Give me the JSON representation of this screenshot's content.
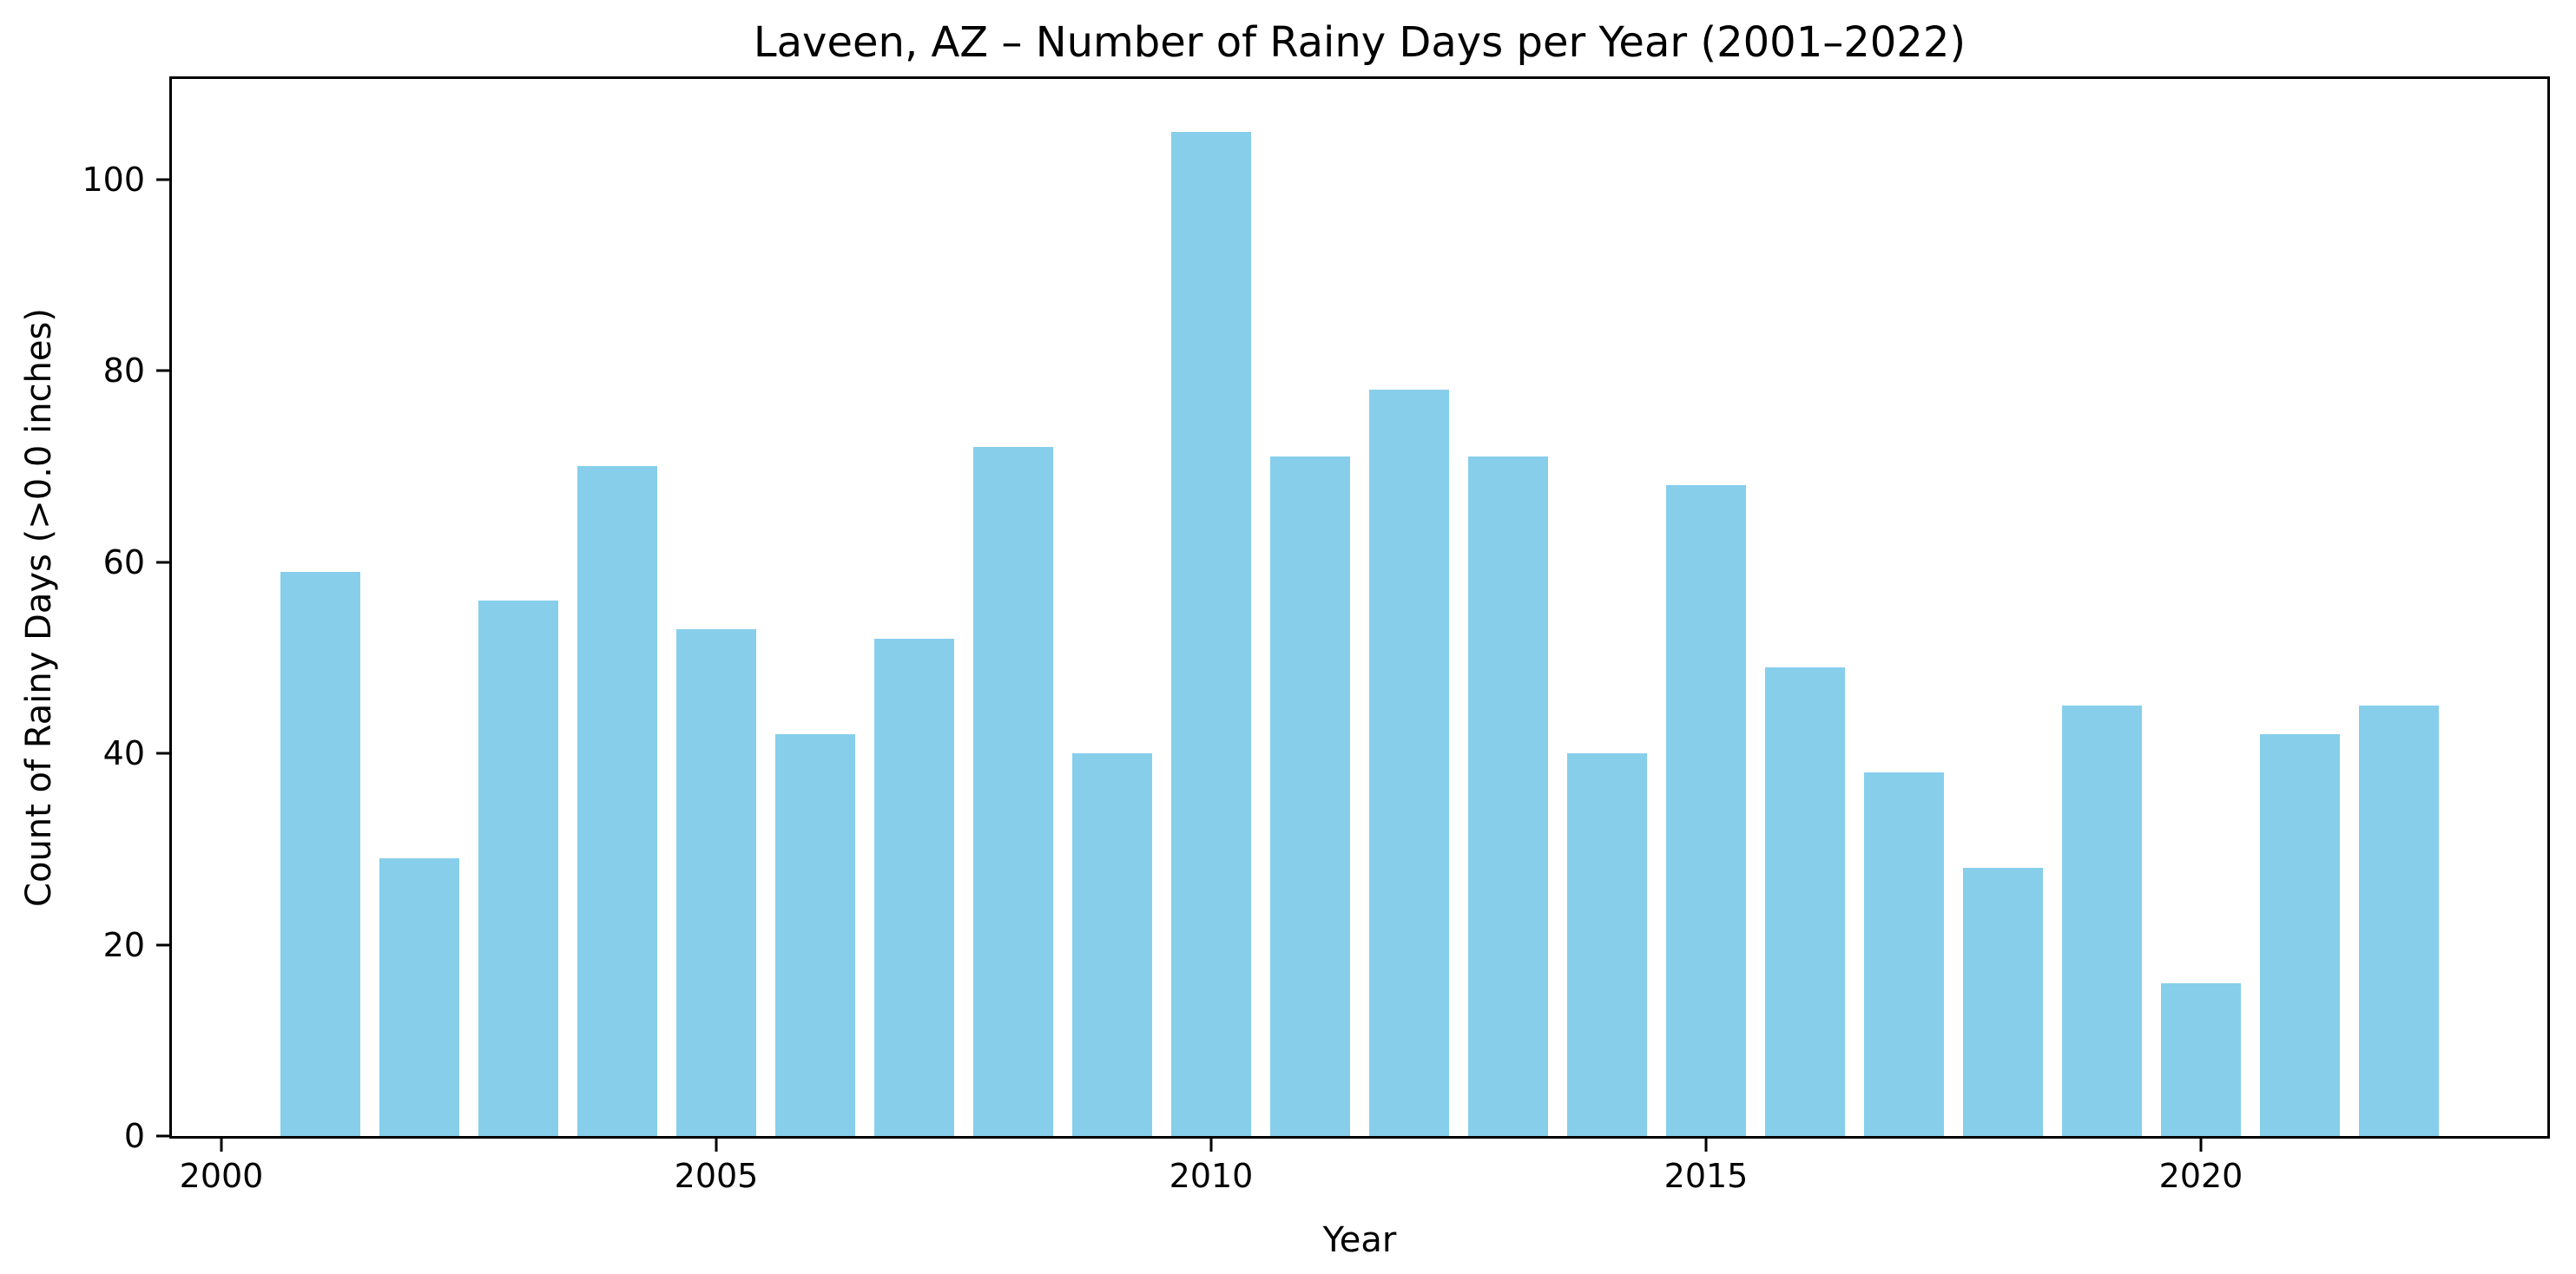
{
  "figure": {
    "background": "#ffffff",
    "text_color": "#000000",
    "spine_color": "#000000"
  },
  "chart_data": {
    "type": "bar",
    "title": "Laveen, AZ – Number of Rainy Days per Year (2001–2022)",
    "xlabel": "Year",
    "ylabel": "Count of Rainy Days (>0.0 inches)",
    "categories": [
      2001,
      2002,
      2003,
      2004,
      2005,
      2006,
      2007,
      2008,
      2009,
      2010,
      2011,
      2012,
      2013,
      2014,
      2015,
      2016,
      2017,
      2018,
      2019,
      2020,
      2021,
      2022
    ],
    "values": [
      59,
      29,
      56,
      70,
      53,
      42,
      52,
      72,
      40,
      105,
      71,
      78,
      71,
      40,
      68,
      49,
      38,
      28,
      45,
      16,
      42,
      45
    ],
    "bar_color": "#87CEEB",
    "bar_width": 0.8,
    "xlim": [
      1999.5,
      2023.5
    ],
    "ylim": [
      0,
      110.5
    ],
    "xticks": [
      2000,
      2005,
      2010,
      2015,
      2020
    ],
    "yticks": [
      0,
      20,
      40,
      60,
      80,
      100
    ],
    "grid": false,
    "legend_position": "none"
  }
}
